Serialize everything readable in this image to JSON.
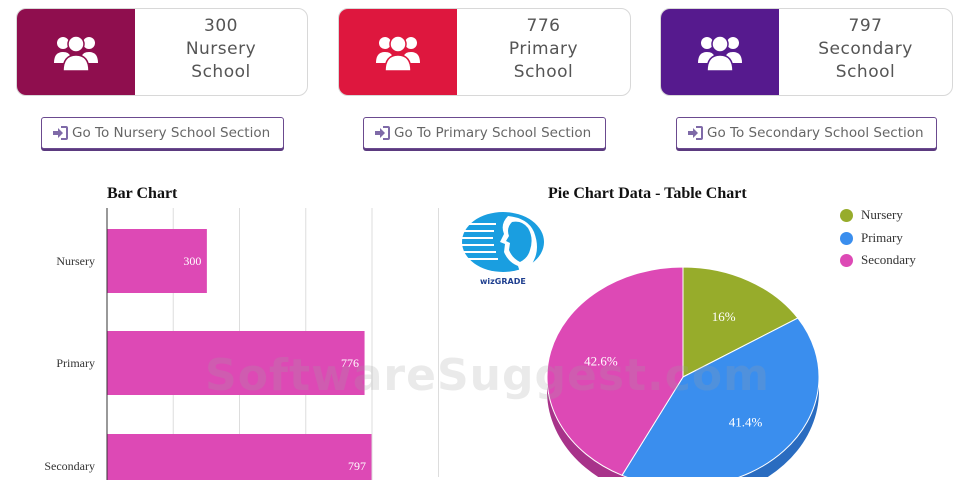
{
  "cards": [
    {
      "count": "300",
      "line1": "Nursery",
      "line2": "School",
      "color": "#8f0e4e",
      "icon": "users-group-icon"
    },
    {
      "count": "776",
      "line1": "Primary",
      "line2": "School",
      "color": "#de173e",
      "icon": "users-group-icon"
    },
    {
      "count": "797",
      "line1": "Secondary",
      "line2": "School",
      "color": "#561a8e",
      "icon": "users-group-icon"
    }
  ],
  "buttons": [
    {
      "label": "Go To Nursery School Section",
      "icon": "sign-in-icon"
    },
    {
      "label": "Go To Primary School Section",
      "icon": "sign-in-icon"
    },
    {
      "label": "Go To Secondary School Section",
      "icon": "sign-in-icon"
    }
  ],
  "logo_text": "wizGRADE",
  "watermark": "SoftwareSuggest.com",
  "chart_data": [
    {
      "type": "bar",
      "title": "Bar Chart",
      "categories": [
        "Nursery",
        "Primary",
        "Secondary"
      ],
      "values": [
        300,
        776,
        797
      ],
      "data_labels": [
        "300",
        "776",
        "797"
      ],
      "color": "#dd49b5",
      "orientation": "horizontal",
      "grid": true,
      "xlim": [
        0,
        800
      ]
    },
    {
      "type": "pie",
      "title": "Pie Chart Data - Table Chart",
      "labels": [
        "Nursery",
        "Primary",
        "Secondary"
      ],
      "values": [
        16,
        41.4,
        42.6
      ],
      "data_labels": [
        "16%",
        "41.4%",
        "42.6%"
      ],
      "colors": [
        "#97ac2b",
        "#3a8eee",
        "#dd49b5"
      ],
      "legend": "top-right",
      "style": "3d"
    }
  ]
}
